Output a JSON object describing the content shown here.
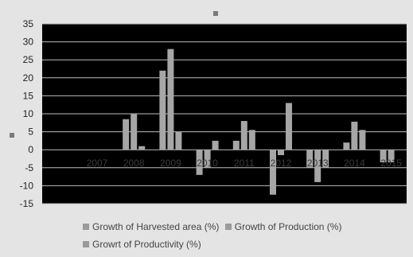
{
  "chart_data": {
    "type": "bar",
    "categories": [
      "2007",
      "2008",
      "2009",
      "2010",
      "2011",
      "2012",
      "2013",
      "2014",
      "2015"
    ],
    "series": [
      {
        "name": "Growth of Harvested area (%)",
        "values": [
          0,
          8.5,
          22,
          -7,
          2.5,
          -12.5,
          -5,
          2,
          -3.5
        ],
        "color": "#a6a6a6"
      },
      {
        "name": "Growth of Production (%)",
        "values": [
          0,
          10,
          28,
          -5,
          8,
          -1.5,
          -9,
          7.8,
          -3.5
        ],
        "color": "#a6a6a6"
      },
      {
        "name": "Growrt of Productivity  (%)",
        "values": [
          0,
          1,
          5,
          2.5,
          5.5,
          13,
          -5,
          5.5,
          0
        ],
        "color": "#a6a6a6"
      }
    ],
    "yticks": [
      "35",
      "30",
      "25",
      "20",
      "15",
      "10",
      "5",
      "0",
      "-5",
      "-10",
      "-15"
    ],
    "ylim": [
      -15,
      35
    ],
    "plot_background": "#000000",
    "gridlines": true,
    "legend_position": "bottom"
  }
}
